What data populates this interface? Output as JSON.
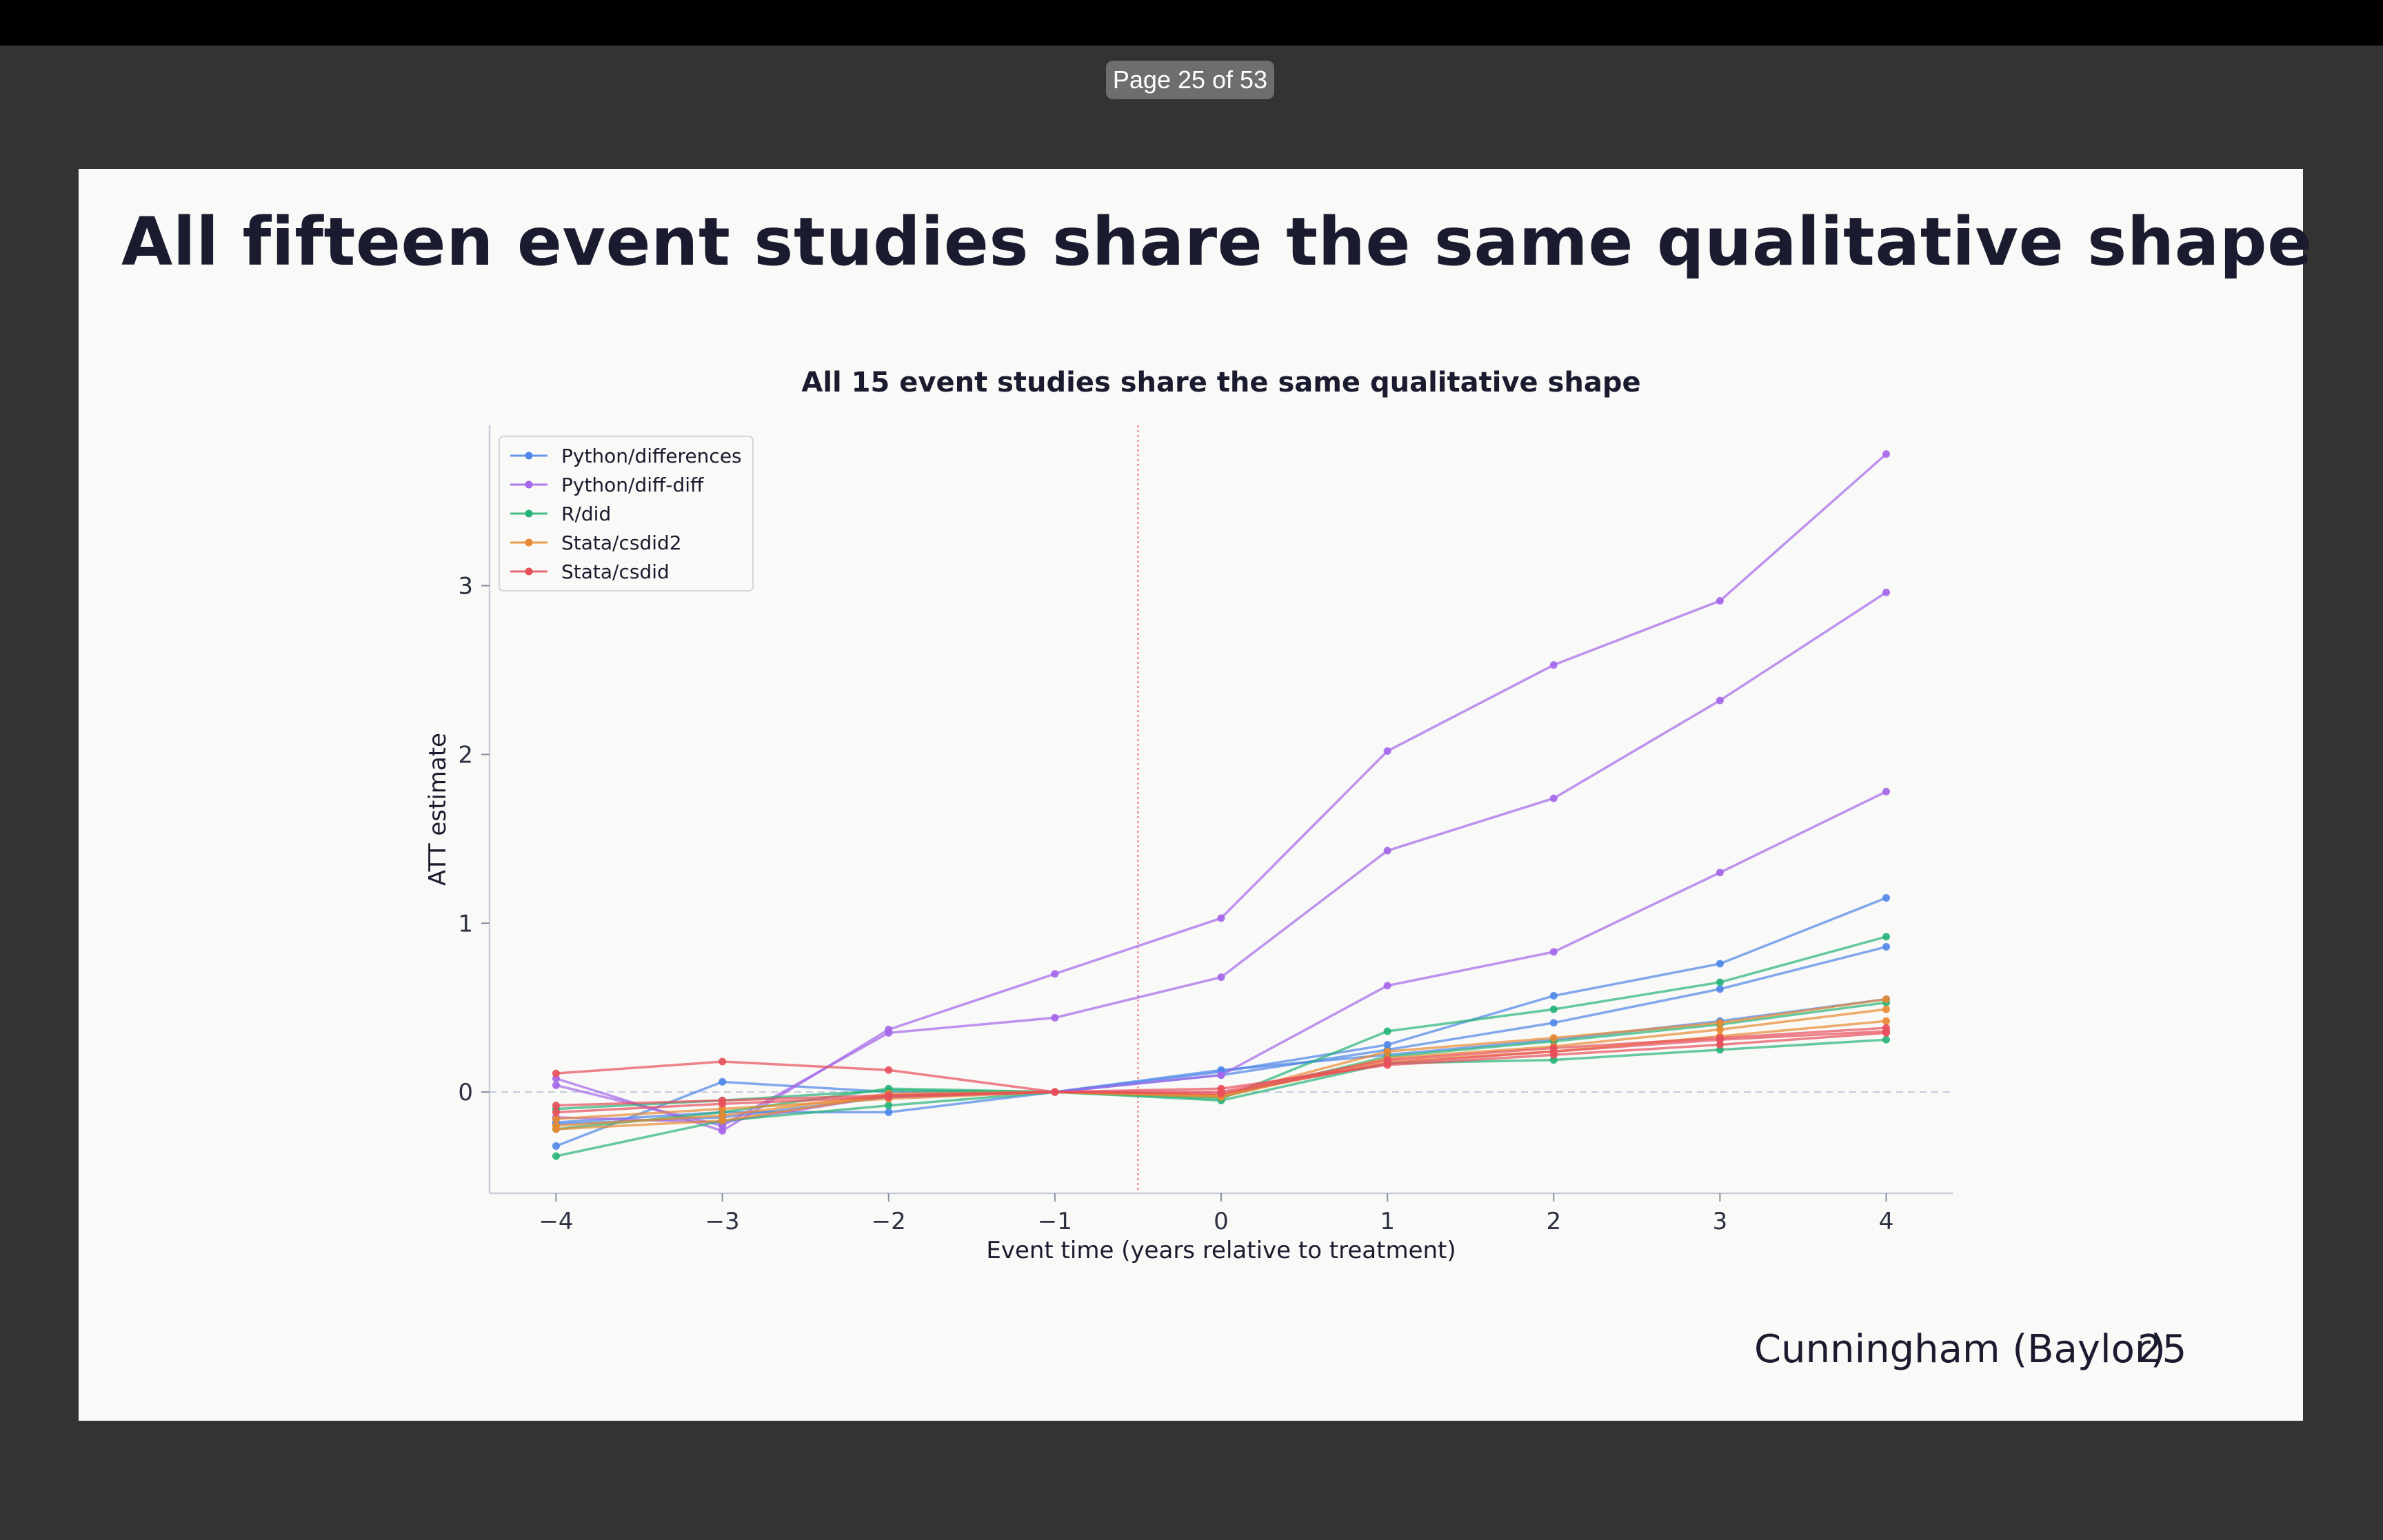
{
  "viewer": {
    "page_indicator": "Page 25 of 53"
  },
  "slide": {
    "title": "All fifteen event studies share the same qualitative shape",
    "footer_author": "Cunningham (Baylor)",
    "footer_page": "25"
  },
  "chart_data": {
    "type": "line",
    "title": "All 15 event studies share the same qualitative shape",
    "xlabel": "Event time (years relative to treatment)",
    "ylabel": "ATT estimate",
    "xlim": [
      -4.4,
      4.4
    ],
    "ylim": [
      -0.6,
      3.95
    ],
    "x": [
      -4,
      -3,
      -2,
      -1,
      0,
      1,
      2,
      3,
      4
    ],
    "xticks": [
      -4,
      -3,
      -2,
      -1,
      0,
      1,
      2,
      3,
      4
    ],
    "xtick_labels": [
      "−4",
      "−3",
      "−2",
      "−1",
      "0",
      "1",
      "2",
      "3",
      "4"
    ],
    "yticks": [
      0,
      1,
      2,
      3
    ],
    "ytick_labels": [
      "0",
      "1",
      "2",
      "3"
    ],
    "treatment_line_x": -0.5,
    "zero_line_y": 0,
    "legend_position": "upper-left",
    "legend": [
      {
        "name": "Python/differences",
        "color": "#4f86e8"
      },
      {
        "name": "Python/diff-diff",
        "color": "#a466ea"
      },
      {
        "name": "R/did",
        "color": "#27b378"
      },
      {
        "name": "Stata/csdid2",
        "color": "#e88a31"
      },
      {
        "name": "Stata/csdid",
        "color": "#e84f5b"
      }
    ],
    "series": [
      {
        "name": "Python/differences",
        "color": "#4f86e8",
        "values": [
          -0.18,
          -0.12,
          -0.12,
          0,
          0.12,
          0.28,
          0.57,
          0.76,
          1.15
        ]
      },
      {
        "name": "Python/differences",
        "color": "#4f86e8",
        "values": [
          -0.32,
          0.06,
          0.0,
          0,
          0.1,
          0.25,
          0.41,
          0.61,
          0.86
        ]
      },
      {
        "name": "Python/differences",
        "color": "#4f86e8",
        "values": [
          -0.19,
          -0.15,
          -0.03,
          0,
          0.13,
          0.22,
          0.31,
          0.42,
          0.55
        ]
      },
      {
        "name": "Python/diff-diff",
        "color": "#a466ea",
        "values": [
          0.08,
          -0.23,
          0.37,
          0.7,
          1.03,
          2.02,
          2.53,
          2.91,
          3.78
        ]
      },
      {
        "name": "Python/diff-diff",
        "color": "#a466ea",
        "values": [
          0.04,
          -0.2,
          0.35,
          0.44,
          0.68,
          1.43,
          1.74,
          2.32,
          2.96
        ]
      },
      {
        "name": "Python/diff-diff",
        "color": "#a466ea",
        "values": [
          -0.15,
          -0.18,
          -0.02,
          0,
          0.1,
          0.63,
          0.83,
          1.3,
          1.78
        ]
      },
      {
        "name": "R/did",
        "color": "#27b378",
        "values": [
          -0.38,
          -0.17,
          -0.08,
          0,
          -0.04,
          0.36,
          0.49,
          0.65,
          0.92
        ]
      },
      {
        "name": "R/did",
        "color": "#27b378",
        "values": [
          -0.22,
          -0.12,
          0.02,
          0,
          -0.05,
          0.17,
          0.19,
          0.25,
          0.31
        ]
      },
      {
        "name": "R/did",
        "color": "#27b378",
        "values": [
          -0.1,
          -0.05,
          0.01,
          0,
          -0.03,
          0.21,
          0.3,
          0.4,
          0.53
        ]
      },
      {
        "name": "Stata/csdid2",
        "color": "#e88a31",
        "values": [
          -0.22,
          -0.17,
          -0.02,
          0,
          -0.02,
          0.24,
          0.32,
          0.41,
          0.55
        ]
      },
      {
        "name": "Stata/csdid2",
        "color": "#e88a31",
        "values": [
          -0.2,
          -0.14,
          -0.01,
          0,
          -0.03,
          0.2,
          0.27,
          0.37,
          0.49
        ]
      },
      {
        "name": "Stata/csdid2",
        "color": "#e88a31",
        "values": [
          -0.16,
          -0.1,
          -0.04,
          0,
          -0.02,
          0.18,
          0.24,
          0.33,
          0.42
        ]
      },
      {
        "name": "Stata/csdid",
        "color": "#e84f5b",
        "values": [
          0.11,
          0.18,
          0.13,
          0,
          0.02,
          0.16,
          0.22,
          0.28,
          0.35
        ]
      },
      {
        "name": "Stata/csdid",
        "color": "#e84f5b",
        "values": [
          -0.08,
          -0.05,
          -0.02,
          0,
          0.0,
          0.19,
          0.26,
          0.32,
          0.38
        ]
      },
      {
        "name": "Stata/csdid",
        "color": "#e84f5b",
        "values": [
          -0.12,
          -0.07,
          -0.03,
          0,
          -0.01,
          0.17,
          0.24,
          0.31,
          0.36
        ]
      }
    ]
  }
}
